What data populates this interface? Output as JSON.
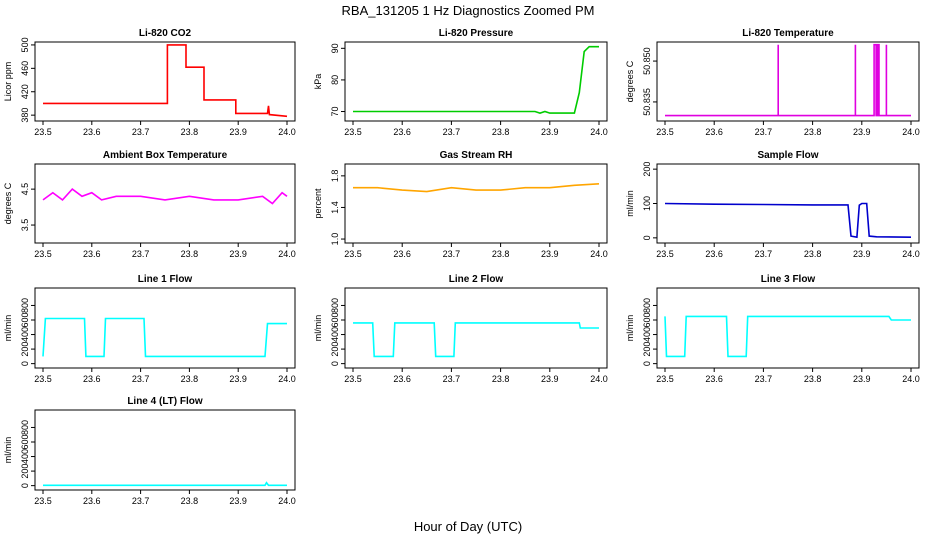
{
  "figure": {
    "title": "RBA_131205  1 Hz Diagnostics Zoomed PM",
    "xlabel": "Hour of Day (UTC)"
  },
  "chart_data": [
    {
      "type": "line",
      "title": "Li-820 CO2",
      "ylabel": "Licor ppm",
      "color": "#ff0000",
      "xlim": [
        23.5,
        24.0
      ],
      "ylim": [
        370,
        505
      ],
      "xticks": [
        "23.5",
        "23.6",
        "23.7",
        "23.8",
        "23.9",
        "24.0"
      ],
      "yticks": [
        {
          "v": 380,
          "l": "380"
        },
        {
          "v": 420,
          "l": "420"
        },
        {
          "v": 460,
          "l": "460"
        },
        {
          "v": 500,
          "l": "500"
        }
      ],
      "series": [
        {
          "x": [
            23.5,
            23.755,
            23.755,
            23.793,
            23.793,
            23.83,
            23.83,
            23.895,
            23.895,
            23.96,
            23.962,
            23.964,
            24.0
          ],
          "y": [
            400,
            400,
            500,
            500,
            462,
            462,
            406,
            406,
            383,
            383,
            396,
            381,
            378
          ]
        }
      ]
    },
    {
      "type": "line",
      "title": "Li-820 Pressure",
      "ylabel": "kPa",
      "color": "#00cc00",
      "xlim": [
        23.5,
        24.0
      ],
      "ylim": [
        67,
        92
      ],
      "xticks": [
        "23.5",
        "23.6",
        "23.7",
        "23.8",
        "23.9",
        "24.0"
      ],
      "yticks": [
        {
          "v": 70,
          "l": "70"
        },
        {
          "v": 80,
          "l": "80"
        },
        {
          "v": 90,
          "l": "90"
        }
      ],
      "series": [
        {
          "x": [
            23.5,
            23.87,
            23.88,
            23.89,
            23.9,
            23.95,
            23.96,
            23.97,
            23.98,
            24.0
          ],
          "y": [
            70,
            70,
            69.5,
            70,
            69.5,
            69.5,
            76,
            89,
            90.5,
            90.5
          ]
        }
      ]
    },
    {
      "type": "line",
      "title": "Li-820 Temperature",
      "ylabel": "degrees C",
      "color": "#e000e0",
      "xlim": [
        23.5,
        24.0
      ],
      "ylim": [
        50.828,
        50.857
      ],
      "xticks": [
        "23.5",
        "23.6",
        "23.7",
        "23.8",
        "23.9",
        "24.0"
      ],
      "yticks": [
        {
          "v": 50.835,
          "l": "50.835"
        },
        {
          "v": 50.85,
          "l": "50.850"
        }
      ],
      "series": [
        {
          "x": [
            23.5,
            23.73,
            23.73,
            23.73,
            23.887,
            23.887,
            23.887,
            23.925,
            23.925,
            23.929,
            23.929,
            23.932,
            23.932,
            23.935,
            23.935,
            23.95,
            23.95,
            23.95,
            24.0
          ],
          "y": [
            50.83,
            50.83,
            50.856,
            50.83,
            50.83,
            50.856,
            50.83,
            50.83,
            50.856,
            50.856,
            50.83,
            50.83,
            50.856,
            50.856,
            50.83,
            50.83,
            50.856,
            50.83,
            50.83
          ]
        }
      ]
    },
    {
      "type": "line",
      "title": "Ambient Box Temperature",
      "ylabel": "degrees C",
      "color": "#ff00ff",
      "xlim": [
        23.5,
        24.0
      ],
      "ylim": [
        3.0,
        5.2
      ],
      "xticks": [
        "23.5",
        "23.6",
        "23.7",
        "23.8",
        "23.9",
        "24.0"
      ],
      "yticks": [
        {
          "v": 3.5,
          "l": "3.5"
        },
        {
          "v": 4.5,
          "l": "4.5"
        }
      ],
      "series": [
        {
          "x": [
            23.5,
            23.52,
            23.54,
            23.56,
            23.58,
            23.6,
            23.62,
            23.65,
            23.7,
            23.75,
            23.8,
            23.85,
            23.9,
            23.95,
            23.97,
            23.99,
            24.0
          ],
          "y": [
            4.2,
            4.4,
            4.2,
            4.5,
            4.3,
            4.4,
            4.2,
            4.3,
            4.3,
            4.2,
            4.3,
            4.2,
            4.2,
            4.3,
            4.1,
            4.4,
            4.3
          ]
        }
      ]
    },
    {
      "type": "line",
      "title": "Gas Stream RH",
      "ylabel": "percent",
      "color": "#ffa500",
      "xlim": [
        23.5,
        24.0
      ],
      "ylim": [
        0.95,
        1.95
      ],
      "xticks": [
        "23.5",
        "23.6",
        "23.7",
        "23.8",
        "23.9",
        "24.0"
      ],
      "yticks": [
        {
          "v": 1.0,
          "l": "1.0"
        },
        {
          "v": 1.4,
          "l": "1.4"
        },
        {
          "v": 1.8,
          "l": "1.8"
        }
      ],
      "series": [
        {
          "x": [
            23.5,
            23.55,
            23.6,
            23.65,
            23.7,
            23.75,
            23.8,
            23.85,
            23.9,
            23.95,
            24.0
          ],
          "y": [
            1.65,
            1.65,
            1.62,
            1.6,
            1.65,
            1.62,
            1.62,
            1.65,
            1.65,
            1.68,
            1.7
          ]
        }
      ]
    },
    {
      "type": "line",
      "title": "Sample Flow",
      "ylabel": "ml/min",
      "color": "#0000cc",
      "xlim": [
        23.5,
        24.0
      ],
      "ylim": [
        -15,
        215
      ],
      "xticks": [
        "23.5",
        "23.6",
        "23.7",
        "23.8",
        "23.9",
        "24.0"
      ],
      "yticks": [
        {
          "v": 0,
          "l": "0"
        },
        {
          "v": 100,
          "l": "100"
        },
        {
          "v": 200,
          "l": "200"
        }
      ],
      "series": [
        {
          "x": [
            23.5,
            23.6,
            23.7,
            23.8,
            23.872,
            23.878,
            23.89,
            23.895,
            23.9,
            23.91,
            23.915,
            23.93,
            24.0
          ],
          "y": [
            100,
            98,
            97,
            96,
            96,
            5,
            2,
            95,
            100,
            100,
            5,
            3,
            2
          ]
        }
      ]
    },
    {
      "type": "line",
      "title": "Line 1 Flow",
      "ylabel": "ml/min",
      "color": "#00ffff",
      "xlim": [
        23.5,
        24.0
      ],
      "ylim": [
        -60,
        1040
      ],
      "xticks": [
        "23.5",
        "23.6",
        "23.7",
        "23.8",
        "23.9",
        "24.0"
      ],
      "yticks": [
        {
          "v": 0,
          "l": "0"
        },
        {
          "v": 200,
          "l": "200"
        },
        {
          "v": 400,
          "l": "400"
        },
        {
          "v": 600,
          "l": "600"
        },
        {
          "v": 800,
          "l": "800"
        }
      ],
      "series": [
        {
          "x": [
            23.5,
            23.505,
            23.585,
            23.588,
            23.625,
            23.628,
            23.707,
            23.71,
            23.955,
            23.96,
            24.0
          ],
          "y": [
            100,
            620,
            620,
            100,
            100,
            620,
            620,
            100,
            100,
            550,
            550
          ]
        }
      ]
    },
    {
      "type": "line",
      "title": "Line 2 Flow",
      "ylabel": "ml/min",
      "color": "#00ffff",
      "xlim": [
        23.5,
        24.0
      ],
      "ylim": [
        -60,
        1040
      ],
      "xticks": [
        "23.5",
        "23.6",
        "23.7",
        "23.8",
        "23.9",
        "24.0"
      ],
      "yticks": [
        {
          "v": 0,
          "l": "0"
        },
        {
          "v": 200,
          "l": "200"
        },
        {
          "v": 400,
          "l": "400"
        },
        {
          "v": 600,
          "l": "600"
        },
        {
          "v": 800,
          "l": "800"
        }
      ],
      "series": [
        {
          "x": [
            23.5,
            23.54,
            23.543,
            23.582,
            23.585,
            23.665,
            23.668,
            23.705,
            23.708,
            23.96,
            23.962,
            24.0
          ],
          "y": [
            560,
            560,
            100,
            100,
            560,
            560,
            100,
            100,
            560,
            560,
            490,
            490
          ]
        }
      ]
    },
    {
      "type": "line",
      "title": "Line 3 Flow",
      "ylabel": "ml/min",
      "color": "#00ffff",
      "xlim": [
        23.5,
        24.0
      ],
      "ylim": [
        -60,
        1040
      ],
      "xticks": [
        "23.5",
        "23.6",
        "23.7",
        "23.8",
        "23.9",
        "24.0"
      ],
      "yticks": [
        {
          "v": 0,
          "l": "0"
        },
        {
          "v": 200,
          "l": "200"
        },
        {
          "v": 400,
          "l": "400"
        },
        {
          "v": 600,
          "l": "600"
        },
        {
          "v": 800,
          "l": "800"
        }
      ],
      "series": [
        {
          "x": [
            23.5,
            23.503,
            23.54,
            23.543,
            23.625,
            23.628,
            23.665,
            23.668,
            23.955,
            23.96,
            24.0
          ],
          "y": [
            650,
            100,
            100,
            650,
            650,
            100,
            100,
            650,
            650,
            600,
            600
          ]
        }
      ]
    },
    {
      "type": "line",
      "title": "Line 4 (LT) Flow",
      "ylabel": "ml/min",
      "color": "#00ffff",
      "xlim": [
        23.5,
        24.0
      ],
      "ylim": [
        -60,
        1040
      ],
      "xticks": [
        "23.5",
        "23.6",
        "23.7",
        "23.8",
        "23.9",
        "24.0"
      ],
      "yticks": [
        {
          "v": 0,
          "l": "0"
        },
        {
          "v": 200,
          "l": "200"
        },
        {
          "v": 400,
          "l": "400"
        },
        {
          "v": 600,
          "l": "600"
        },
        {
          "v": 800,
          "l": "800"
        }
      ],
      "series": [
        {
          "x": [
            23.5,
            23.955,
            23.958,
            23.962,
            24.0
          ],
          "y": [
            5,
            5,
            40,
            5,
            5
          ]
        }
      ]
    }
  ]
}
